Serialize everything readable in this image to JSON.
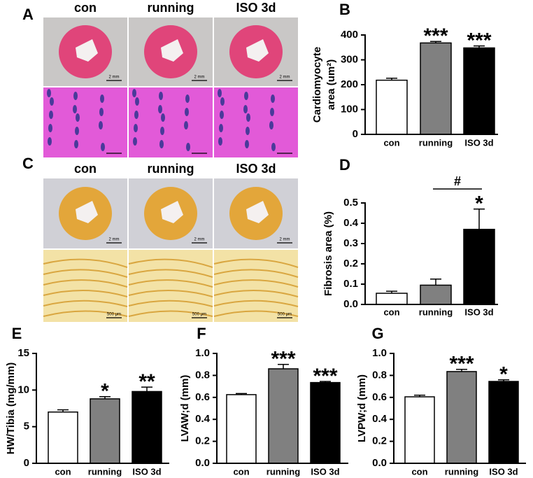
{
  "image_panels": [
    {
      "label": "A",
      "columns": [
        "con",
        "running",
        "ISO 3d"
      ],
      "scale_top": "2 mm"
    },
    {
      "label": "C",
      "columns": [
        "con",
        "running",
        "ISO 3d"
      ],
      "scale_top": "2 mm",
      "scale_bottom": "500 μm"
    }
  ],
  "chart_data": [
    {
      "type": "bar",
      "label": "B",
      "ylabel": [
        "Cardiomyocyte",
        "area (um²)"
      ],
      "categories": [
        "con",
        "running",
        "ISO 3d"
      ],
      "values": [
        218,
        368,
        348
      ],
      "errors": [
        8,
        6,
        8
      ],
      "colors": [
        "#ffffff",
        "#808080",
        "#000000"
      ],
      "bar_labels": [
        null,
        "***",
        "***"
      ],
      "ylim": [
        0,
        400
      ],
      "yticks": [
        0,
        100,
        200,
        300,
        400
      ]
    },
    {
      "type": "bar",
      "label": "D",
      "ylabel": [
        "Fibrosis area (%)"
      ],
      "categories": [
        "con",
        "running",
        "ISO 3d"
      ],
      "values": [
        0.055,
        0.095,
        0.37
      ],
      "errors": [
        0.01,
        0.03,
        0.1
      ],
      "colors": [
        "#ffffff",
        "#808080",
        "#000000"
      ],
      "bar_labels": [
        null,
        null,
        "*"
      ],
      "bracket_label": "#",
      "ylim": [
        0,
        0.5
      ],
      "yticks": [
        {
          "value": 0,
          "label": "0.0"
        },
        0.1,
        0.2,
        0.3,
        0.4,
        0.5
      ]
    },
    {
      "type": "bar",
      "label": "E",
      "ylabel": [
        "HW/Tibia (mg/mm)"
      ],
      "categories": [
        "con",
        "running",
        "ISO 3d"
      ],
      "values": [
        7.0,
        8.8,
        9.8
      ],
      "errors": [
        0.3,
        0.3,
        0.6
      ],
      "colors": [
        "#ffffff",
        "#808080",
        "#000000"
      ],
      "bar_labels": [
        null,
        "*",
        "**"
      ],
      "ylim": [
        0,
        15
      ],
      "yticks": [
        0,
        5,
        10,
        15
      ]
    },
    {
      "type": "bar",
      "label": "F",
      "ylabel": [
        "LVAW;d (mm)"
      ],
      "categories": [
        "con",
        "running",
        "ISO 3d"
      ],
      "values": [
        0.625,
        0.86,
        0.735
      ],
      "errors": [
        0.01,
        0.04,
        0.01
      ],
      "colors": [
        "#ffffff",
        "#808080",
        "#000000"
      ],
      "bar_labels": [
        null,
        "***",
        "***"
      ],
      "ylim": [
        0,
        1.0
      ],
      "yticks": [
        {
          "value": 0,
          "label": "0.0"
        },
        0.2,
        0.4,
        0.6,
        0.8,
        {
          "value": 1,
          "label": "1.0"
        }
      ]
    },
    {
      "type": "bar",
      "label": "G",
      "ylabel": [
        "LVPW;d (mm)"
      ],
      "categories": [
        "con",
        "running",
        "ISO 3d"
      ],
      "values": [
        0.605,
        0.835,
        0.745
      ],
      "errors": [
        0.015,
        0.02,
        0.015
      ],
      "colors": [
        "#ffffff",
        "#808080",
        "#000000"
      ],
      "bar_labels": [
        null,
        "***",
        "*"
      ],
      "ylim": [
        0,
        1.0
      ],
      "yticks": [
        {
          "value": 0,
          "label": "0.0"
        },
        0.2,
        0.4,
        0.6,
        0.8,
        {
          "value": 1,
          "label": "1.0"
        }
      ]
    }
  ]
}
